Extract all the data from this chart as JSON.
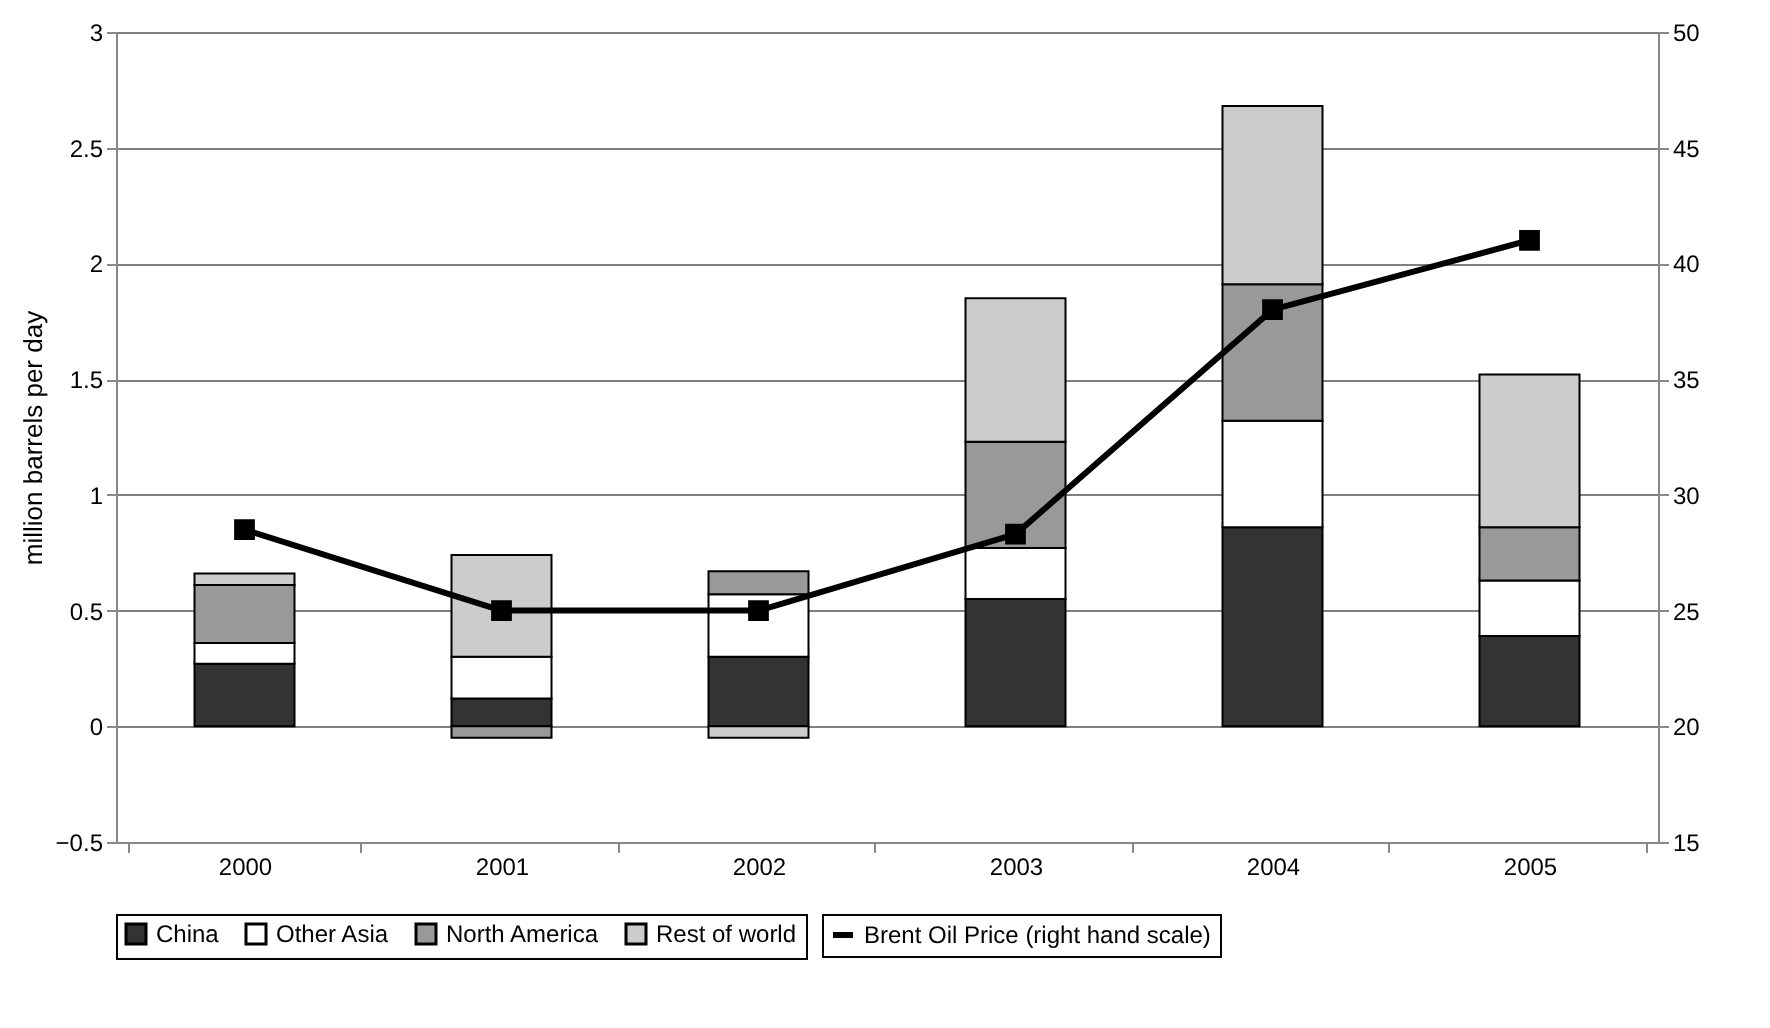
{
  "chart_data": {
    "type": "bar",
    "stacked": true,
    "ylabel": "million barrels per day",
    "categories": [
      "2000",
      "2001",
      "2002",
      "2003",
      "2004",
      "2005"
    ],
    "ylim": [
      -0.5,
      3
    ],
    "yticks": [
      -0.5,
      0,
      0.5,
      1,
      1.5,
      2,
      2.5,
      3
    ],
    "y2lim": [
      15,
      50
    ],
    "y2ticks": [
      15,
      20,
      25,
      30,
      35,
      40,
      45,
      50
    ],
    "grid": "y",
    "legend": "bottom",
    "series": [
      {
        "name": "China",
        "color": "#333333",
        "values": [
          0.27,
          0.12,
          0.3,
          0.55,
          0.86,
          0.39
        ]
      },
      {
        "name": "Other Asia",
        "color": "#ffffff",
        "values": [
          0.09,
          0.18,
          0.27,
          0.22,
          0.46,
          0.24
        ]
      },
      {
        "name": "North America",
        "color": "#999999",
        "values": [
          0.25,
          -0.05,
          0.1,
          0.46,
          0.59,
          0.23
        ]
      },
      {
        "name": "Rest of world",
        "color": "#cccccc",
        "values": [
          0.05,
          0.44,
          -0.05,
          0.62,
          0.77,
          0.66
        ]
      },
      {
        "name": "Brent Oil Price (right hand scale)",
        "type": "line",
        "axis": "y2",
        "color": "#000000",
        "marker": "square",
        "values": [
          28.5,
          25,
          25,
          28.3,
          38,
          41
        ]
      }
    ]
  }
}
